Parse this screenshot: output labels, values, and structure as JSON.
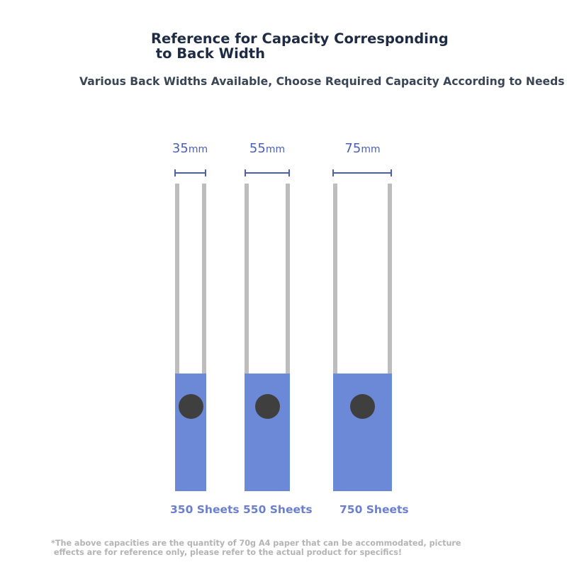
{
  "header": {
    "title": "Reference for Capacity Corresponding\n to Back Width",
    "subtitle": "Various Back Widths Available, Choose Required Capacity According to Needs"
  },
  "binders": [
    {
      "width_value": "35",
      "width_unit": "mm",
      "capacity": "350 Sheets"
    },
    {
      "width_value": "55",
      "width_unit": "mm",
      "capacity": "550 Sheets"
    },
    {
      "width_value": "75",
      "width_unit": "mm",
      "capacity": "750 Sheets"
    }
  ],
  "footnote": "*The above capacities are the quantity of 70g A4 paper that can be accommodated, picture\n effects are for reference only, please refer to the actual product for specifics!",
  "colors": {
    "title": "#1d2b44",
    "accent_blue": "#4b5fb4",
    "spine_blue": "#6b89d6",
    "capacity_text": "#6b7fcf",
    "rail_gray": "#bdbdbd",
    "hole": "#3f3f3f",
    "footnote": "#b4b4b4"
  }
}
